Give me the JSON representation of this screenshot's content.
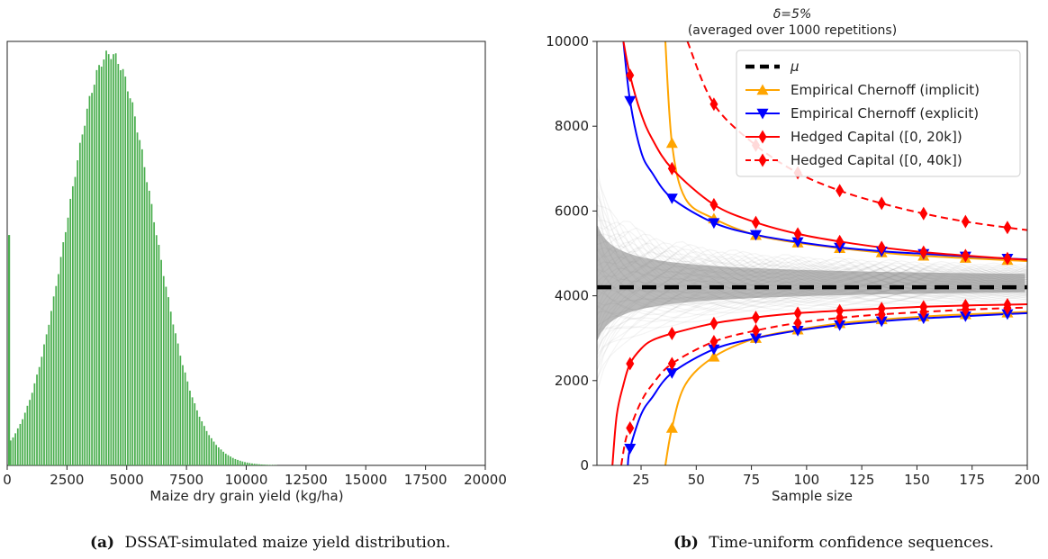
{
  "captions": {
    "a_prefix": "(a)",
    "a_text": "DSSAT-simulated maize yield distribution.",
    "b_prefix": "(b)",
    "b_text": "Time-uniform confidence sequences."
  },
  "chart_data": [
    {
      "type": "bar",
      "xlabel": "Maize dry grain yield (kg/ha)",
      "ylabel": "",
      "xlim": [
        0,
        20000
      ],
      "x_ticks": [
        "0",
        "2500",
        "5000",
        "7500",
        "10000",
        "12500",
        "15000",
        "17500",
        "20000"
      ],
      "y_ticks_visible": false,
      "bar_color": "#4caf50",
      "bin_width": 100,
      "zero_spike": 0.56,
      "density_peak_at": 4300,
      "density_peak_relative": 1.0,
      "notes": "histogram of simulated yields; large spike at 0, roughly Gaussian bulk centered near 4300 kg/ha, negligible beyond 11000"
    },
    {
      "type": "line",
      "title": "δ=5%",
      "subtitle": "(averaged over 1000 repetitions)",
      "xlabel": "Sample size",
      "ylabel": "",
      "xlim": [
        5,
        200
      ],
      "ylim": [
        0,
        10000
      ],
      "x_ticks": [
        "25",
        "50",
        "75",
        "100",
        "125",
        "150",
        "175",
        "200"
      ],
      "y_ticks": [
        "0",
        "2000",
        "4000",
        "6000",
        "8000",
        "10000"
      ],
      "mu": 4200,
      "legend_position": "top-right",
      "series": [
        {
          "name": "μ",
          "color": "#000000",
          "style": "dashed-thick",
          "marker": "none"
        },
        {
          "name": "Empirical Chernoff (implicit)",
          "color": "#ffa500",
          "style": "solid",
          "marker": "triangle-up",
          "upper": {
            "x": [
              36,
              39,
              45,
              58,
              77,
              96,
              115,
              134,
              153,
              172,
              191,
              200
            ],
            "y": [
              10000,
              7600,
              6300,
              5820,
              5430,
              5250,
              5120,
              5020,
              4940,
              4890,
              4840,
              4820
            ]
          },
          "lower": {
            "x": [
              36,
              39,
              45,
              58,
              77,
              96,
              115,
              134,
              153,
              172,
              191,
              200
            ],
            "y": [
              0,
              880,
              1900,
              2560,
              3000,
              3200,
              3350,
              3440,
              3510,
              3560,
              3600,
              3620
            ]
          }
        },
        {
          "name": "Empirical Chernoff (explicit)",
          "color": "#0000ff",
          "style": "solid",
          "marker": "triangle-down",
          "upper": {
            "x": [
              17,
              20,
              25,
              30,
              39,
              58,
              77,
              96,
              115,
              134,
              153,
              172,
              191,
              200
            ],
            "y": [
              10000,
              8600,
              7400,
              6900,
              6300,
              5720,
              5440,
              5270,
              5140,
              5050,
              4990,
              4930,
              4880,
              4860
            ]
          },
          "lower": {
            "x": [
              19,
              20,
              25,
              30,
              39,
              58,
              77,
              96,
              115,
              134,
              153,
              172,
              191,
              200
            ],
            "y": [
              0,
              400,
              1200,
              1600,
              2180,
              2740,
              3000,
              3180,
              3310,
              3400,
              3470,
              3520,
              3570,
              3590
            ]
          }
        },
        {
          "name": "Hedged Capital ([0, 20k])",
          "color": "#ff0000",
          "style": "solid",
          "marker": "diamond",
          "upper": {
            "x": [
              17,
              20,
              25,
              30,
              39,
              58,
              77,
              96,
              115,
              134,
              153,
              172,
              191,
              200
            ],
            "y": [
              10000,
              9200,
              8300,
              7700,
              7000,
              6150,
              5730,
              5460,
              5280,
              5140,
              5030,
              4950,
              4880,
              4850
            ]
          },
          "lower": {
            "x": [
              12,
              14,
              17,
              20,
              25,
              30,
              39,
              58,
              77,
              96,
              115,
              134,
              153,
              172,
              191,
              200
            ],
            "y": [
              0,
              1200,
              1900,
              2400,
              2750,
              2950,
              3110,
              3350,
              3490,
              3590,
              3650,
              3700,
              3740,
              3770,
              3790,
              3800
            ]
          }
        },
        {
          "name": "Hedged Capital ([0, 40k])",
          "color": "#ff0000",
          "style": "dashed",
          "marker": "diamond",
          "upper": {
            "x": [
              46,
              58,
              77,
              96,
              115,
              134,
              153,
              172,
              191,
              200
            ],
            "y": [
              10000,
              8520,
              7550,
              6900,
              6480,
              6180,
              5940,
              5750,
              5610,
              5550
            ]
          },
          "lower": {
            "x": [
              16,
              18,
              20,
              25,
              30,
              39,
              58,
              77,
              96,
              115,
              134,
              153,
              172,
              191,
              200
            ],
            "y": [
              0,
              600,
              880,
              1500,
              1900,
              2400,
              2920,
              3180,
              3360,
              3480,
              3560,
              3620,
              3670,
              3710,
              3720
            ]
          }
        }
      ],
      "background_band": {
        "color": "#808080",
        "center": 4300,
        "note": "1000 faint gray running-mean paths converging toward μ"
      }
    }
  ]
}
